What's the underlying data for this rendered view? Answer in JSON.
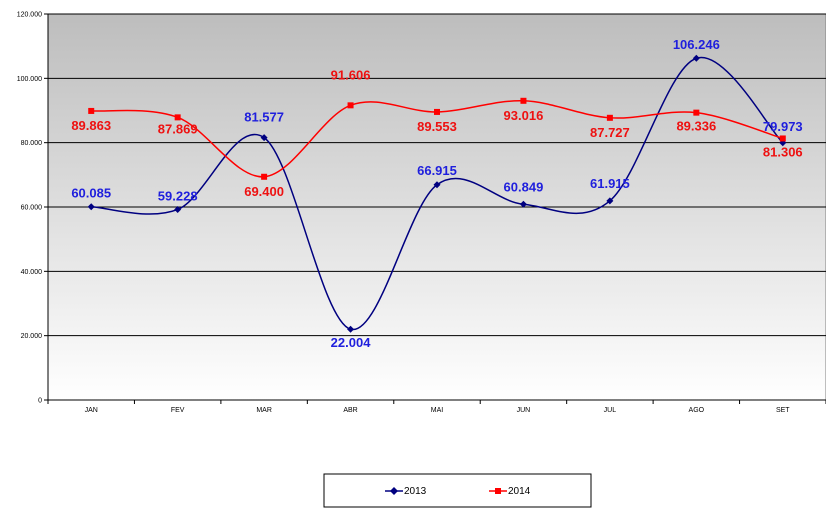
{
  "chart_data": {
    "type": "line",
    "title": "",
    "xlabel": "",
    "ylabel": "",
    "categories": [
      "JAN",
      "FEV",
      "MAR",
      "ABR",
      "MAI",
      "JUN",
      "JUL",
      "AGO",
      "SET"
    ],
    "ylim": [
      0,
      120000
    ],
    "yticks": [
      0,
      20000,
      40000,
      60000,
      80000,
      100000,
      120000
    ],
    "ytick_labels": [
      "0",
      "20.000",
      "40.000",
      "60.000",
      "80.000",
      "100.000",
      "120.000"
    ],
    "grid": true,
    "smooth": true,
    "legend_position": "bottom",
    "series": [
      {
        "name": "2013",
        "color": "#000080",
        "label_color": "#1f1fdd",
        "marker": "diamond",
        "values": [
          60085,
          59228,
          81577,
          22004,
          66915,
          60849,
          61915,
          106246,
          79973
        ],
        "labels": [
          "60.085",
          "59.228",
          "81.577",
          "22.004",
          "66.915",
          "60.849",
          "61.915",
          "106.246",
          "79.973"
        ]
      },
      {
        "name": "2014",
        "color": "#ff0000",
        "label_color": "#ee1111",
        "marker": "square",
        "values": [
          89863,
          87869,
          69400,
          91606,
          89553,
          93016,
          87727,
          89336,
          81306
        ],
        "labels": [
          "89.863",
          "87.869",
          "69.400",
          "91.606",
          "89.553",
          "93.016",
          "87.727",
          "89.336",
          "81.306"
        ]
      }
    ]
  }
}
